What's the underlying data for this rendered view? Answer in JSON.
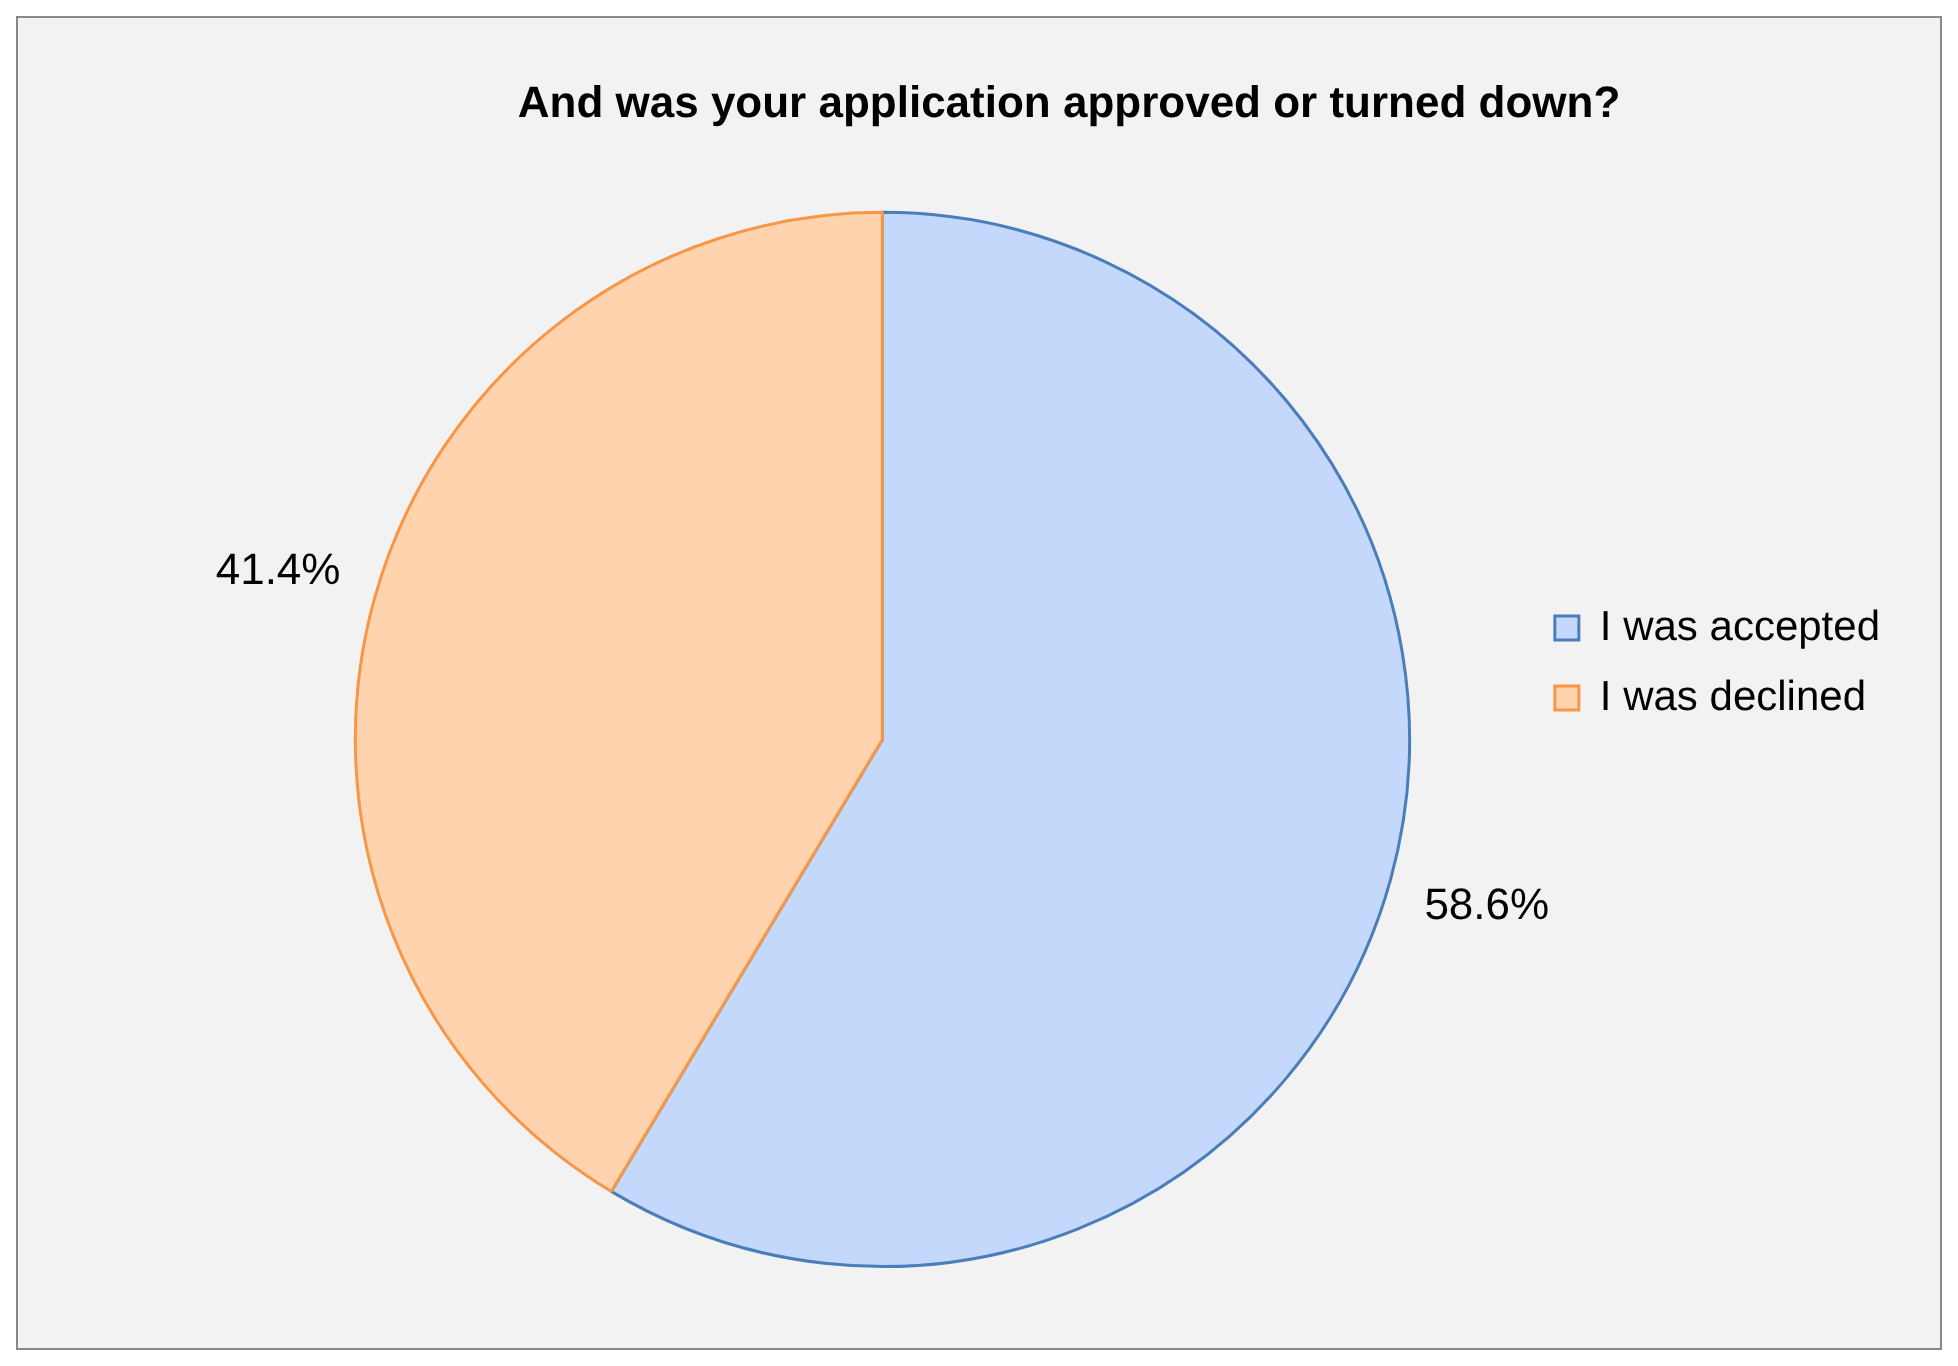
{
  "chart_data": {
    "type": "pie",
    "title": "And was your application approved or turned down?",
    "categories": [
      "I was accepted",
      "I was declined"
    ],
    "values": [
      58.6,
      41.4
    ],
    "colors": [
      "#c3d8fb",
      "#ffd3ae"
    ],
    "value_labels": [
      "58.6%",
      "41.4%"
    ],
    "legend": "right"
  }
}
